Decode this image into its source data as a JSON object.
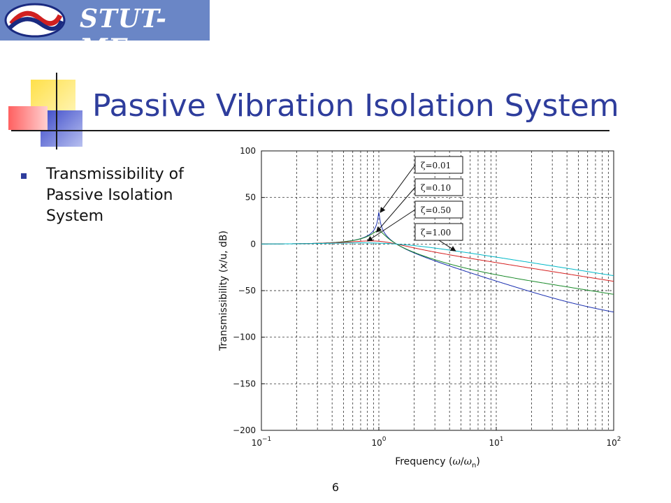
{
  "logo": {
    "text": "STUT-ME"
  },
  "slide": {
    "title": "Passive Vibration Isolation System",
    "bullet": "Transmissibility of Passive Isolation System",
    "page_number": "6"
  },
  "colors": {
    "title": "#2e3d9c",
    "logo_bg": "#6a86c6",
    "series": [
      "#1a2fb0",
      "#1a8a2a",
      "#d62020",
      "#00b8c8"
    ]
  },
  "chart_data": {
    "type": "line",
    "xscale": "log",
    "xlim": [
      0.1,
      100
    ],
    "ylim": [
      -200,
      100
    ],
    "xticks": [
      0.1,
      1,
      10,
      100
    ],
    "xtick_labels": [
      {
        "base": "10",
        "exp": "−1"
      },
      {
        "base": "10",
        "exp": "0"
      },
      {
        "base": "10",
        "exp": "1"
      },
      {
        "base": "10",
        "exp": "2"
      }
    ],
    "yticks": [
      100,
      50,
      0,
      -50,
      -100,
      -150,
      -200
    ],
    "ytick_labels": [
      "100",
      "50",
      "0",
      "−50",
      "−100",
      "−150",
      "−200"
    ],
    "grid": true,
    "xlabel": {
      "pre": "Frequency (",
      "mid": "/",
      "sub": "n",
      "post": ")"
    },
    "ylabel": "Transmissibility (x/u, dB)",
    "series": [
      {
        "name": "ζ=0.01",
        "zeta": 0.01
      },
      {
        "name": "ζ=0.10",
        "zeta": 0.1
      },
      {
        "name": "ζ=0.50",
        "zeta": 0.5
      },
      {
        "name": "ζ=1.00",
        "zeta": 1.0
      }
    ]
  }
}
